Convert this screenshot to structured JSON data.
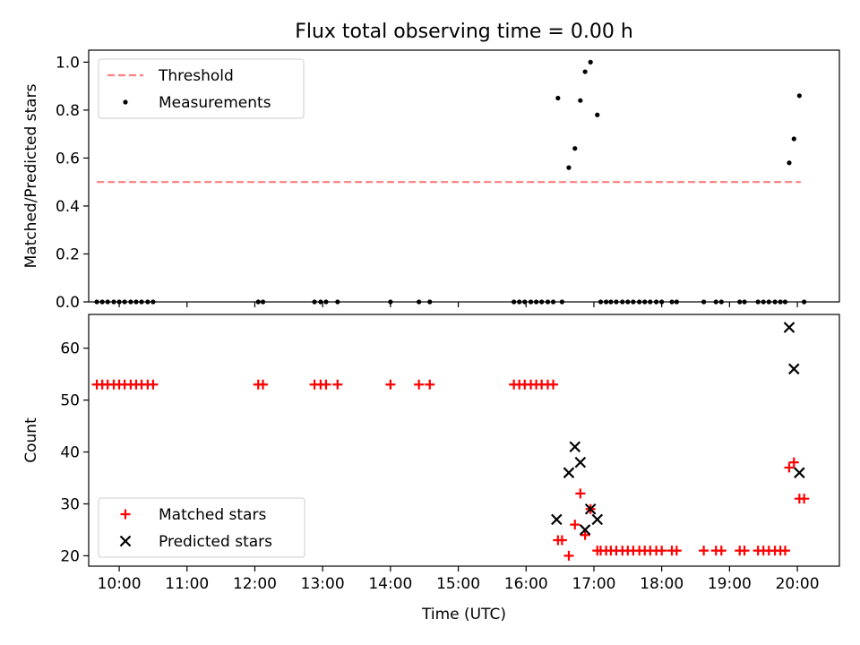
{
  "figure": {
    "title": "Flux total observing time = 0.00 h"
  },
  "chart_data": [
    {
      "type": "scatter",
      "ylabel": "Matched/Predicted stars",
      "xlabel": "",
      "xlim": [
        9.55,
        20.62
      ],
      "ylim": [
        0,
        1.05
      ],
      "xticks": [
        10,
        11,
        12,
        13,
        14,
        15,
        16,
        17,
        18,
        19,
        20
      ],
      "yticks": [
        0.0,
        0.2,
        0.4,
        0.6,
        0.8,
        1.0
      ],
      "ytick_labels": [
        "0.0",
        "0.2",
        "0.4",
        "0.6",
        "0.8",
        "1.0"
      ],
      "legend_position": "top-left",
      "grid": false,
      "series": [
        {
          "name": "Threshold",
          "kind": "line",
          "style": "dashed",
          "color": "#ff7f7f",
          "x": [
            9.67,
            20.05
          ],
          "y": [
            0.5,
            0.5
          ]
        },
        {
          "name": "Measurements",
          "kind": "points",
          "marker": "dot",
          "color": "#000000",
          "x": [
            9.67,
            9.75,
            9.83,
            9.92,
            10.0,
            10.08,
            10.17,
            10.25,
            10.33,
            10.42,
            10.5,
            12.05,
            12.12,
            12.88,
            12.97,
            13.05,
            13.22,
            14.0,
            14.42,
            14.58,
            15.82,
            15.9,
            15.98,
            16.07,
            16.15,
            16.23,
            16.32,
            16.4,
            16.47,
            16.53,
            16.63,
            16.72,
            16.8,
            16.87,
            16.95,
            17.05,
            17.1,
            17.18,
            17.25,
            17.33,
            17.42,
            17.5,
            17.58,
            17.67,
            17.75,
            17.83,
            17.92,
            18.0,
            18.15,
            18.22,
            18.62,
            18.8,
            18.88,
            19.15,
            19.22,
            19.42,
            19.5,
            19.58,
            19.67,
            19.75,
            19.82,
            19.88,
            19.95,
            20.03,
            20.1
          ],
          "y": [
            0,
            0,
            0,
            0,
            0,
            0,
            0,
            0,
            0,
            0,
            0,
            0,
            0,
            0,
            0,
            0,
            0,
            0,
            0,
            0,
            0,
            0,
            0,
            0,
            0,
            0,
            0,
            0,
            0.85,
            0,
            0.56,
            0.64,
            0.84,
            0.96,
            1.0,
            0.78,
            0,
            0,
            0,
            0,
            0,
            0,
            0,
            0,
            0,
            0,
            0,
            0,
            0,
            0,
            0,
            0,
            0,
            0,
            0,
            0,
            0,
            0,
            0,
            0,
            0,
            0.58,
            0.68,
            0.86,
            0
          ]
        }
      ]
    },
    {
      "type": "scatter",
      "ylabel": "Count",
      "xlabel": "Time (UTC)",
      "xlim": [
        9.55,
        20.62
      ],
      "ylim": [
        18,
        66.5
      ],
      "xticks": [
        10,
        11,
        12,
        13,
        14,
        15,
        16,
        17,
        18,
        19,
        20
      ],
      "xtick_labels": [
        "10:00",
        "11:00",
        "12:00",
        "13:00",
        "14:00",
        "15:00",
        "16:00",
        "17:00",
        "18:00",
        "19:00",
        "20:00"
      ],
      "yticks": [
        20,
        30,
        40,
        50,
        60
      ],
      "ytick_labels": [
        "20",
        "30",
        "40",
        "50",
        "60"
      ],
      "legend_position": "bottom-left",
      "grid": false,
      "series": [
        {
          "name": "Matched stars",
          "kind": "points",
          "marker": "plus",
          "color": "#ff0000",
          "x": [
            9.67,
            9.75,
            9.83,
            9.92,
            10.0,
            10.08,
            10.17,
            10.25,
            10.33,
            10.42,
            10.5,
            12.05,
            12.12,
            12.88,
            12.97,
            13.05,
            13.22,
            14.0,
            14.42,
            14.58,
            15.82,
            15.9,
            15.98,
            16.07,
            16.15,
            16.23,
            16.32,
            16.4,
            16.47,
            16.53,
            16.63,
            16.72,
            16.8,
            16.87,
            16.95,
            17.05,
            17.1,
            17.18,
            17.25,
            17.33,
            17.42,
            17.5,
            17.58,
            17.67,
            17.75,
            17.83,
            17.92,
            18.0,
            18.15,
            18.22,
            18.62,
            18.8,
            18.88,
            19.15,
            19.22,
            19.42,
            19.5,
            19.58,
            19.67,
            19.75,
            19.82,
            19.88,
            19.95,
            20.03,
            20.1
          ],
          "y": [
            53,
            53,
            53,
            53,
            53,
            53,
            53,
            53,
            53,
            53,
            53,
            53,
            53,
            53,
            53,
            53,
            53,
            53,
            53,
            53,
            53,
            53,
            53,
            53,
            53,
            53,
            53,
            53,
            23,
            23,
            20,
            26,
            32,
            24,
            29,
            21,
            21,
            21,
            21,
            21,
            21,
            21,
            21,
            21,
            21,
            21,
            21,
            21,
            21,
            21,
            21,
            21,
            21,
            21,
            21,
            21,
            21,
            21,
            21,
            21,
            21,
            37,
            38,
            31,
            31
          ]
        },
        {
          "name": "Predicted stars",
          "kind": "points",
          "marker": "x",
          "color": "#000000",
          "x": [
            16.45,
            16.63,
            16.72,
            16.8,
            16.87,
            16.95,
            17.05,
            19.88,
            19.95,
            20.03
          ],
          "y": [
            27,
            36,
            41,
            38,
            25,
            29,
            27,
            64,
            56,
            36
          ]
        }
      ]
    }
  ]
}
